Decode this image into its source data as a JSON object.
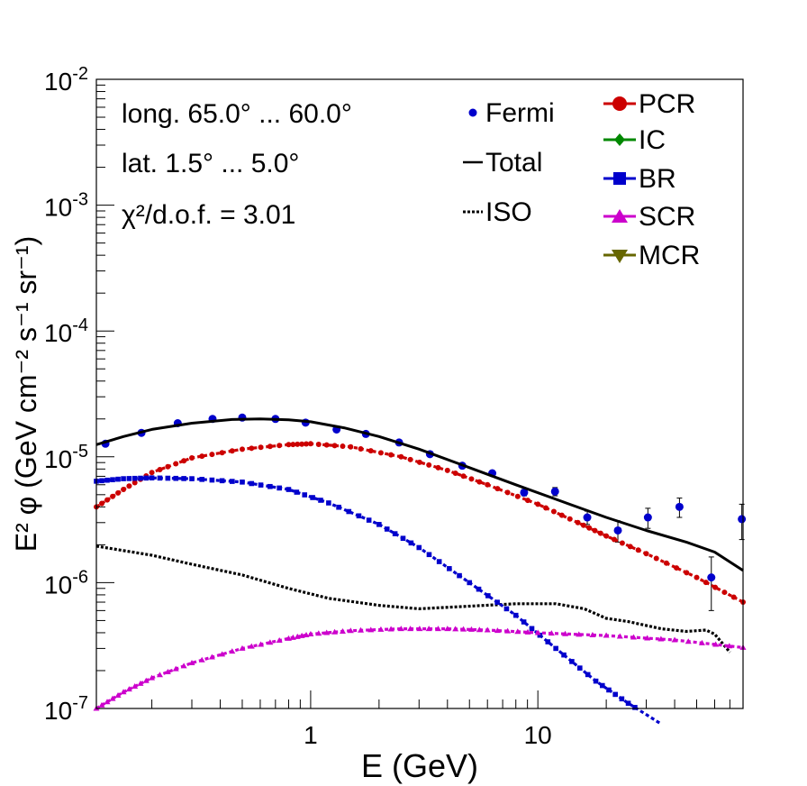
{
  "chart_data": {
    "type": "line",
    "xscale": "log",
    "yscale": "log",
    "xlim": [
      0.114,
      80
    ],
    "ylim": [
      1e-07,
      0.01
    ],
    "xlabel": "E (GeV)",
    "ylabel": "E² φ (GeV cm⁻² s⁻¹ sr⁻¹)",
    "x_tick_labels": [
      "1",
      "10"
    ],
    "y_tick_labels": [
      {
        "base": "10",
        "exp": "-7"
      },
      {
        "base": "10",
        "exp": "-6"
      },
      {
        "base": "10",
        "exp": "-5"
      },
      {
        "base": "10",
        "exp": "-4"
      },
      {
        "base": "10",
        "exp": "-3"
      },
      {
        "base": "10",
        "exp": "-2"
      }
    ],
    "annotations": [
      "long. 65.0° ... 60.0°",
      "lat. 1.5° ... 5.0°",
      "χ²/d.o.f. = 3.01"
    ],
    "legend_left": [
      "Fermi",
      "Total",
      "ISO"
    ],
    "legend_right": [
      "PCR",
      "IC",
      "BR",
      "SCR",
      "MCR"
    ],
    "series": [
      {
        "name": "Fermi",
        "kind": "points",
        "color": "#0000cc",
        "x": [
          0.125,
          0.18,
          0.26,
          0.37,
          0.5,
          0.7,
          0.95,
          1.3,
          1.75,
          2.45,
          3.35,
          4.65,
          6.3,
          8.7,
          11.9,
          16.5,
          22.5,
          30.5,
          42,
          58,
          79
        ],
        "y": [
          1.27e-05,
          1.55e-05,
          1.85e-05,
          2e-05,
          2.05e-05,
          2e-05,
          1.87e-05,
          1.65e-05,
          1.52e-05,
          1.3e-05,
          1.05e-05,
          8.5e-06,
          7.4e-06,
          5.2e-06,
          5.3e-06,
          3.3e-06,
          2.6e-06,
          3.3e-06,
          4e-06,
          1.1e-06,
          3.2e-06
        ],
        "err": [
          2e-07,
          2e-07,
          2e-07,
          2e-07,
          2e-07,
          2e-07,
          2e-07,
          2e-07,
          2e-07,
          2e-07,
          2e-07,
          2e-07,
          3e-07,
          3e-07,
          4e-07,
          4e-07,
          5e-07,
          6e-07,
          7e-07,
          5e-07,
          1e-06
        ]
      },
      {
        "name": "Total",
        "kind": "line",
        "color": "#000000",
        "dash": "solid",
        "x": [
          0.114,
          0.15,
          0.2,
          0.3,
          0.45,
          0.6,
          0.8,
          1.0,
          1.4,
          2.0,
          3.0,
          5.0,
          8.0,
          12,
          20,
          30,
          45,
          60,
          80
        ],
        "y": [
          1.25e-05,
          1.45e-05,
          1.65e-05,
          1.85e-05,
          1.98e-05,
          2e-05,
          1.97e-05,
          1.9e-05,
          1.7e-05,
          1.45e-05,
          1.15e-05,
          8.2e-06,
          6e-06,
          4.6e-06,
          3.3e-06,
          2.6e-06,
          2.1e-06,
          1.75e-06,
          1.25e-06
        ]
      },
      {
        "name": "ISO",
        "kind": "line",
        "color": "#000000",
        "dash": "dotted",
        "x": [
          0.114,
          0.2,
          0.3,
          0.5,
          0.8,
          1.2,
          2.0,
          3.0,
          5.0,
          8.0,
          12,
          16,
          20,
          25,
          35,
          45,
          55,
          60,
          70
        ],
        "y": [
          1.95e-06,
          1.65e-06,
          1.4e-06,
          1.15e-06,
          9e-07,
          7.5e-07,
          6.6e-07,
          6.2e-07,
          6.5e-07,
          6.8e-07,
          6.8e-07,
          6.2e-07,
          5.2e-07,
          4.9e-07,
          4.3e-07,
          4.1e-07,
          4.2e-07,
          3.9e-07,
          2.8e-07
        ]
      },
      {
        "name": "PCR",
        "kind": "line",
        "color": "#cc0000",
        "dash": "dashed",
        "marker": "circle",
        "x": [
          0.114,
          0.15,
          0.2,
          0.3,
          0.5,
          0.8,
          1.0,
          1.5,
          2.5,
          4.0,
          6.0,
          10,
          15,
          20,
          30,
          50,
          80
        ],
        "y": [
          4e-06,
          5.5e-06,
          7.5e-06,
          9.8e-06,
          1.15e-05,
          1.25e-05,
          1.27e-05,
          1.2e-05,
          1e-05,
          7.8e-06,
          6e-06,
          4.2e-06,
          3e-06,
          2.35e-06,
          1.7e-06,
          1.1e-06,
          7e-07
        ]
      },
      {
        "name": "BR",
        "kind": "line",
        "color": "#0000cc",
        "dash": "dashed",
        "marker": "square",
        "x": [
          0.114,
          0.15,
          0.2,
          0.3,
          0.5,
          0.8,
          1.2,
          2.0,
          3.0,
          5.0,
          8.0,
          12,
          18,
          25,
          35
        ],
        "y": [
          6.4e-06,
          6.7e-06,
          6.8e-06,
          6.7e-06,
          6.3e-06,
          5.5e-06,
          4.3e-06,
          2.9e-06,
          1.9e-06,
          1e-06,
          5.5e-07,
          3e-07,
          1.65e-07,
          1.1e-07,
          7.5e-08
        ]
      },
      {
        "name": "SCR",
        "kind": "line",
        "color": "#cc00cc",
        "dash": "dashed",
        "marker": "triangle",
        "x": [
          0.114,
          0.15,
          0.2,
          0.3,
          0.5,
          0.8,
          1.0,
          1.5,
          2.5,
          4.0,
          6.0,
          10,
          20,
          40,
          80
        ],
        "y": [
          1e-07,
          1.35e-07,
          1.75e-07,
          2.3e-07,
          3e-07,
          3.6e-07,
          3.9e-07,
          4.15e-07,
          4.3e-07,
          4.3e-07,
          4.2e-07,
          4e-07,
          3.8e-07,
          3.5e-07,
          3.05e-07
        ]
      },
      {
        "name": "IC",
        "kind": "line",
        "color": "#008800",
        "marker": "diamond",
        "x": [],
        "y": []
      },
      {
        "name": "MCR",
        "kind": "line",
        "color": "#666600",
        "marker": "triangle-down",
        "x": [],
        "y": []
      }
    ]
  }
}
